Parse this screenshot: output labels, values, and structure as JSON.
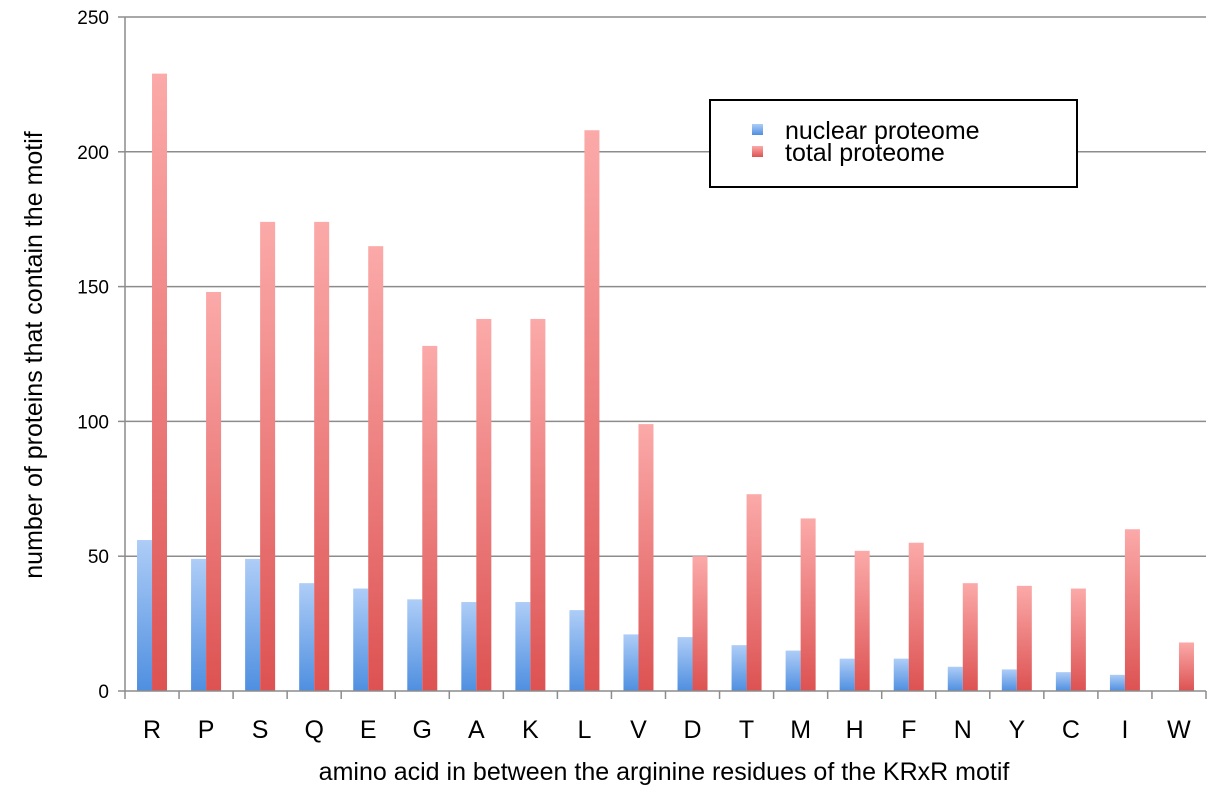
{
  "chart_data": {
    "type": "bar",
    "title": "",
    "xlabel": "amino acid in between the arginine residues of the KRxR motif",
    "ylabel": "number of proteins that contain the motif",
    "ylim": [
      0,
      250
    ],
    "yticks": [
      0,
      50,
      100,
      150,
      200,
      250
    ],
    "grid": true,
    "legend_position": "top-right",
    "categories": [
      "R",
      "P",
      "S",
      "Q",
      "E",
      "G",
      "A",
      "K",
      "L",
      "V",
      "D",
      "T",
      "M",
      "H",
      "F",
      "N",
      "Y",
      "C",
      "I",
      "W"
    ],
    "series": [
      {
        "name": "nuclear proteome",
        "color": "#6fa8ef",
        "values": [
          56,
          49,
          49,
          40,
          38,
          34,
          33,
          33,
          30,
          21,
          20,
          17,
          15,
          12,
          12,
          9,
          8,
          7,
          6,
          0
        ]
      },
      {
        "name": "total proteome",
        "color": "#f07f7f",
        "values": [
          229,
          148,
          174,
          174,
          165,
          128,
          138,
          138,
          208,
          99,
          50,
          73,
          64,
          52,
          55,
          40,
          39,
          38,
          60,
          18
        ]
      }
    ]
  }
}
